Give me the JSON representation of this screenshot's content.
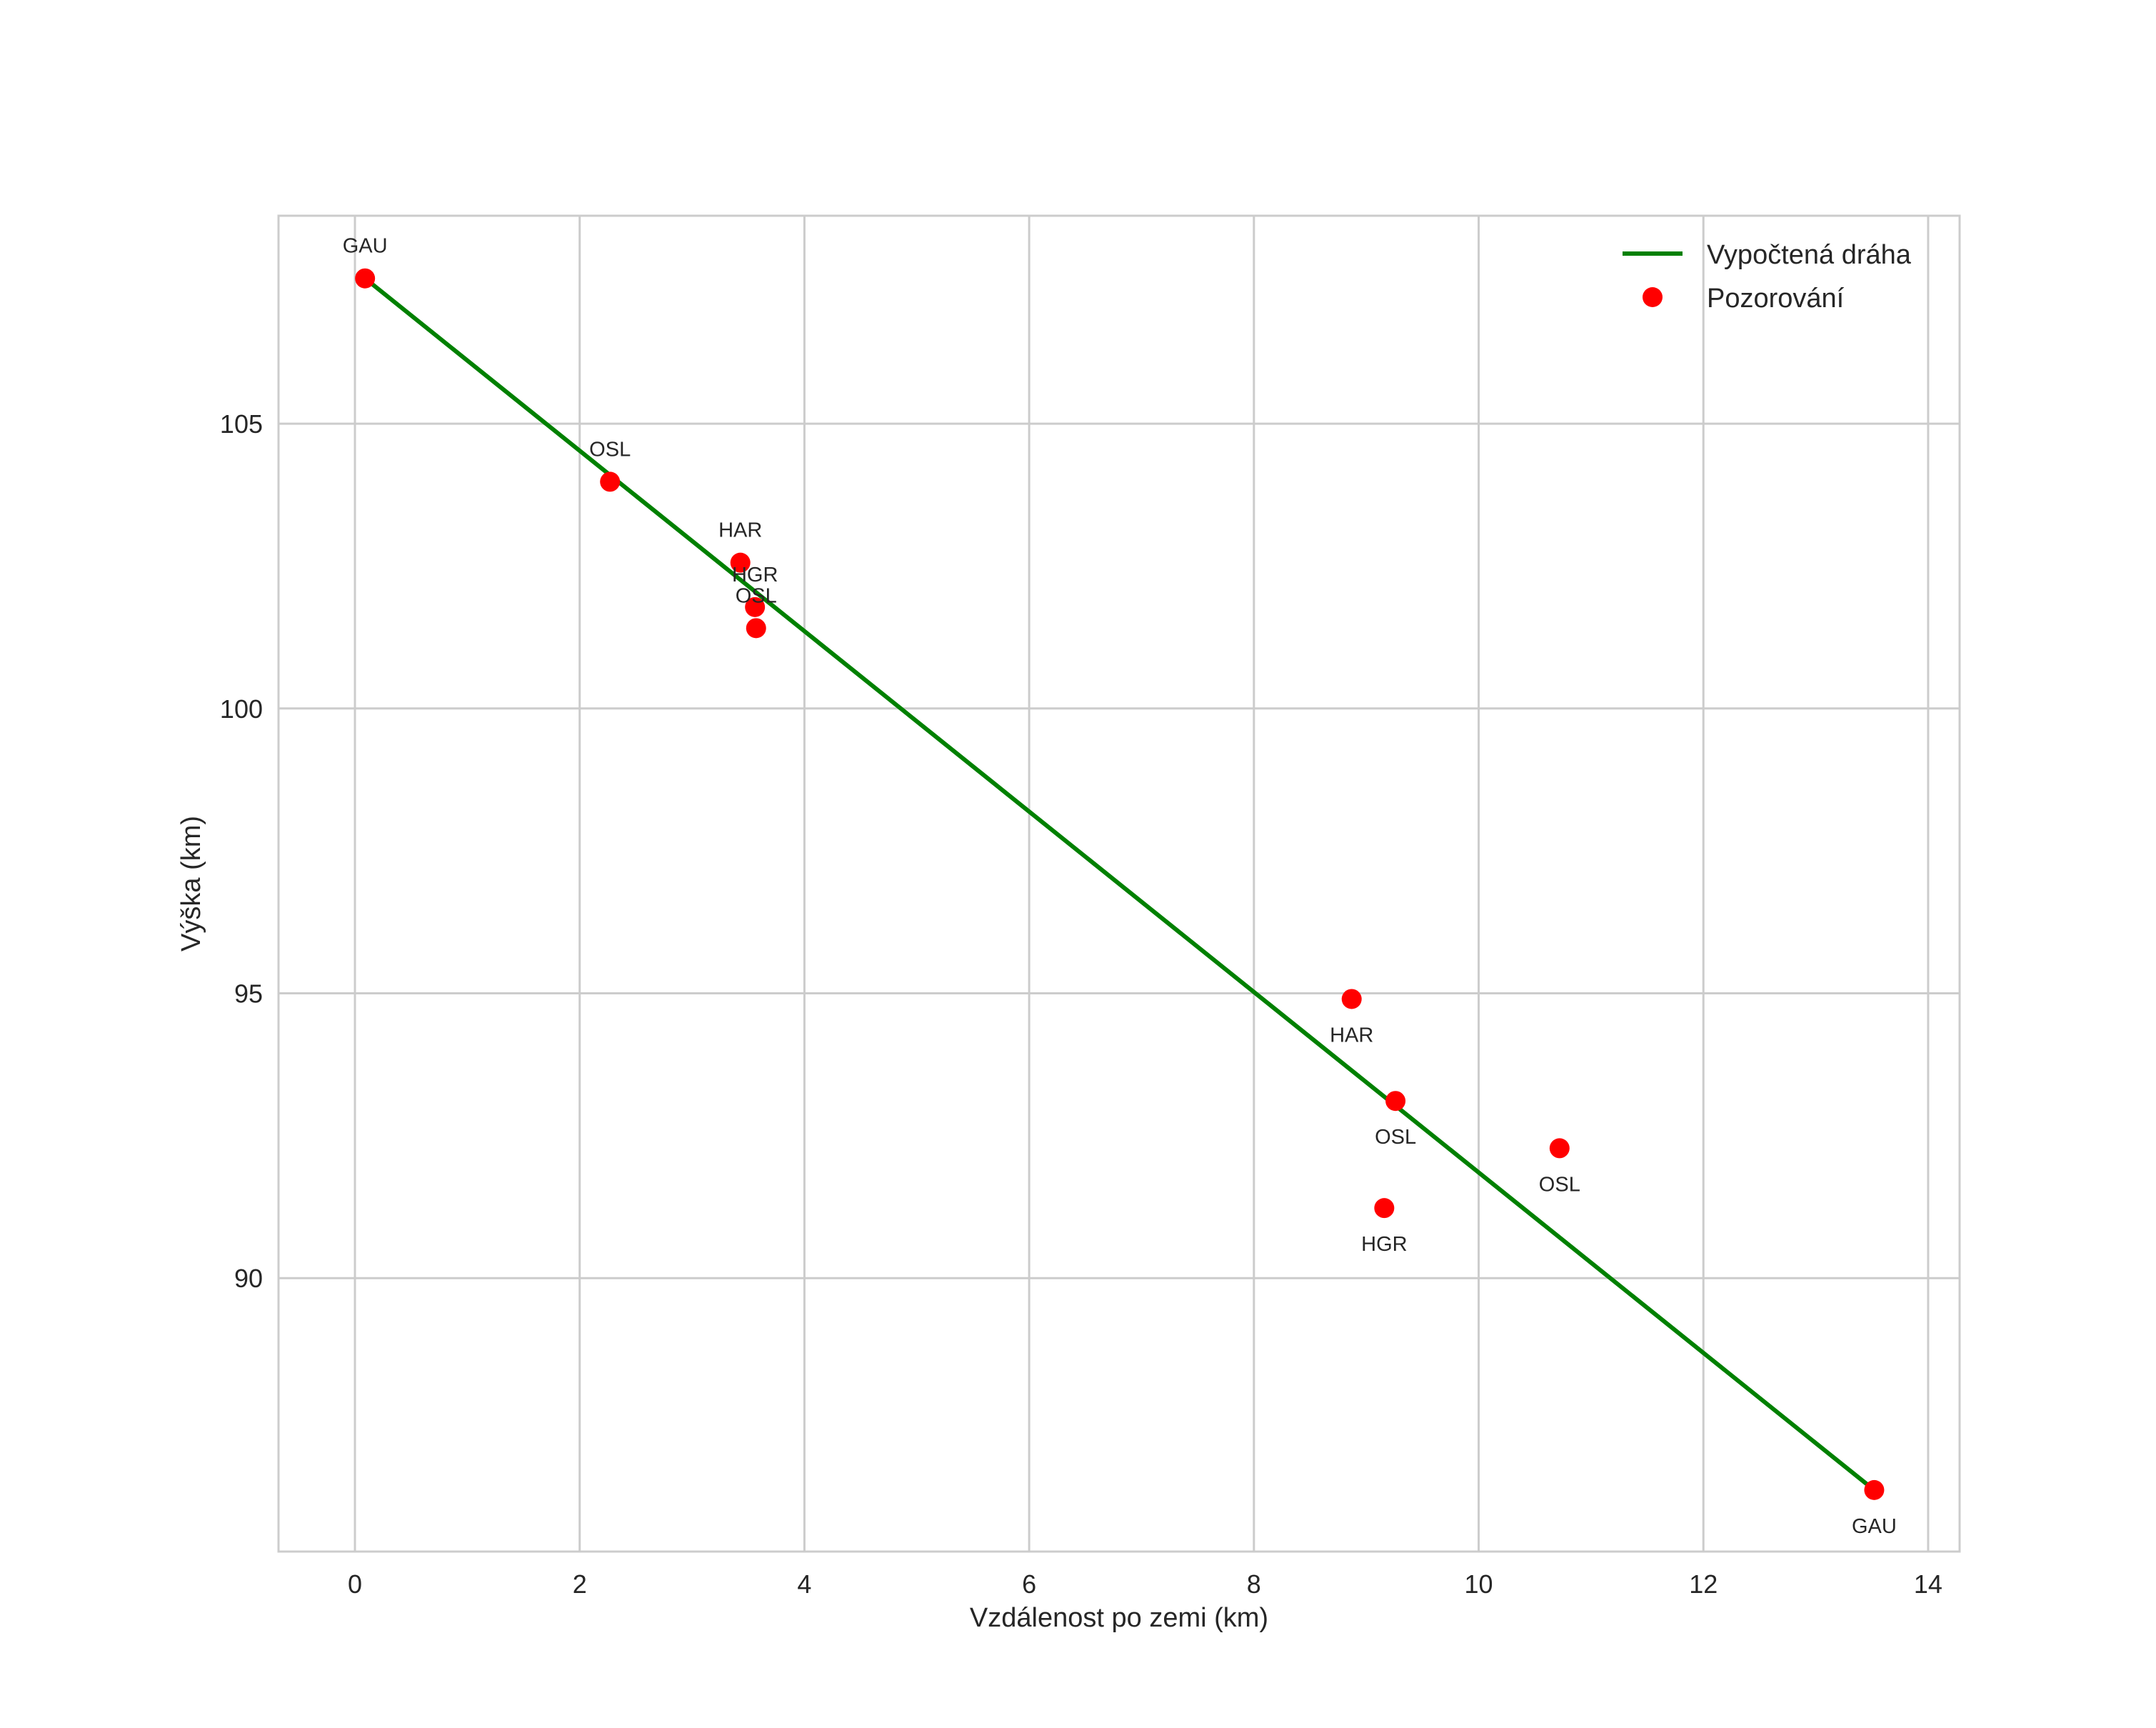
{
  "chart_data": {
    "type": "line+scatter",
    "title": "",
    "xlabel": "Vzdálenost po zemi (km)",
    "ylabel": "Výška (km)",
    "xlim": [
      -0.68,
      14.28
    ],
    "ylim": [
      85.2,
      108.65
    ],
    "xticks": [
      0,
      2,
      4,
      6,
      8,
      10,
      12,
      14
    ],
    "yticks": [
      90,
      95,
      100,
      105
    ],
    "grid": true,
    "legend_position": "upper right",
    "series": [
      {
        "name": "Vypočtená dráha",
        "kind": "line",
        "color": "#008000",
        "x": [
          0.09,
          13.52
        ],
        "y": [
          107.55,
          86.28
        ]
      },
      {
        "name": "Pozorování",
        "kind": "scatter",
        "color": "#ff0000",
        "points": [
          {
            "x": 0.09,
            "y": 107.55,
            "label": "GAU",
            "label_pos": "above"
          },
          {
            "x": 2.27,
            "y": 103.98,
            "label": "OSL",
            "label_pos": "above"
          },
          {
            "x": 3.43,
            "y": 102.56,
            "label": "HAR",
            "label_pos": "above"
          },
          {
            "x": 3.56,
            "y": 101.78,
            "label": "HGR",
            "label_pos": "above"
          },
          {
            "x": 3.57,
            "y": 101.41,
            "label": "OSL",
            "label_pos": "above"
          },
          {
            "x": 8.87,
            "y": 94.9,
            "label": "HAR",
            "label_pos": "below"
          },
          {
            "x": 9.26,
            "y": 93.11,
            "label": "OSL",
            "label_pos": "below"
          },
          {
            "x": 9.16,
            "y": 91.23,
            "label": "HGR",
            "label_pos": "below"
          },
          {
            "x": 10.72,
            "y": 92.28,
            "label": "OSL",
            "label_pos": "below"
          },
          {
            "x": 13.52,
            "y": 86.28,
            "label": "GAU",
            "label_pos": "below"
          }
        ]
      }
    ]
  },
  "legend": {
    "items": [
      {
        "label": "Vypočtená dráha",
        "symbol": "line",
        "color": "#008000"
      },
      {
        "label": "Pozorování",
        "symbol": "dot",
        "color": "#ff0000"
      }
    ]
  },
  "colors": {
    "grid": "#cccccc",
    "frame": "#cccccc",
    "text": "#262626"
  }
}
